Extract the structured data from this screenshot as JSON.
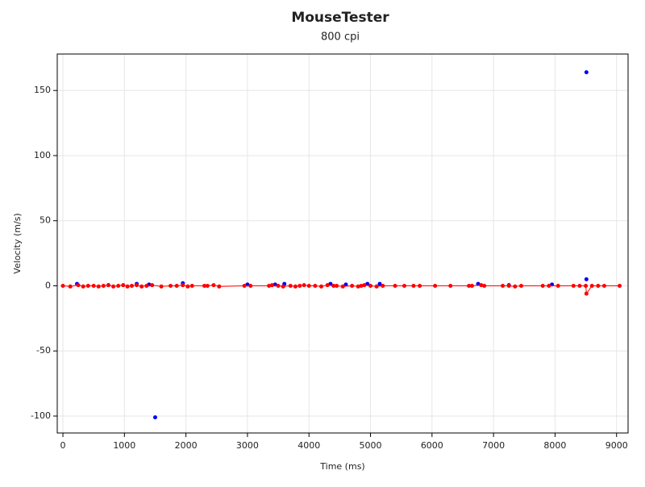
{
  "chart_data": {
    "type": "scatter",
    "title": "MouseTester",
    "subtitle": "800 cpi",
    "x_label": "Time (ms)",
    "y_label": "Velocity (m/s)",
    "xlim": [
      -92,
      9187
    ],
    "ylim": [
      -113,
      178
    ],
    "xticks": [
      0,
      1000,
      2000,
      3000,
      4000,
      5000,
      6000,
      7000,
      8000,
      9000
    ],
    "yticks": [
      -100,
      -50,
      0,
      50,
      100,
      150
    ],
    "grid": true,
    "series": [
      {
        "color": "#0000ff",
        "line": false,
        "x": [
          230,
          740,
          1200,
          1400,
          1500,
          1950,
          3000,
          3450,
          3600,
          4350,
          4600,
          4950,
          5150,
          6750,
          7250,
          7950,
          8510,
          8510
        ],
        "values": [
          1.5,
          0.5,
          1.5,
          1,
          -101,
          2,
          1,
          1,
          1.5,
          1.5,
          1,
          1.5,
          1.5,
          1.5,
          0.5,
          1,
          164,
          5
        ]
      },
      {
        "color": "#ff0000",
        "line": true,
        "x": [
          0,
          120,
          250,
          330,
          410,
          500,
          580,
          660,
          740,
          820,
          900,
          980,
          1050,
          1120,
          1200,
          1280,
          1360,
          1450,
          1600,
          1750,
          1850,
          1950,
          2030,
          2100,
          2300,
          2350,
          2450,
          2540,
          2950,
          3050,
          3350,
          3400,
          3500,
          3580,
          3700,
          3780,
          3850,
          3920,
          4000,
          4100,
          4200,
          4300,
          4400,
          4450,
          4550,
          4700,
          4800,
          4850,
          4900,
          5000,
          5100,
          5200,
          5400,
          5550,
          5700,
          5800,
          6050,
          6300,
          6600,
          6650,
          6800,
          6850,
          7150,
          7250,
          7350,
          7450,
          7800,
          7900,
          8050,
          8300,
          8400,
          8500,
          8510,
          8600,
          8700,
          8800,
          9050
        ],
        "values": [
          0,
          -0.5,
          0.5,
          -0.5,
          0,
          0,
          -0.5,
          0,
          0.5,
          -0.5,
          0,
          0.5,
          -0.5,
          0,
          0.5,
          -0.5,
          0,
          0.5,
          -0.5,
          0,
          0,
          0.5,
          -0.5,
          0,
          0,
          0,
          0.5,
          -0.5,
          0,
          0,
          0,
          0.5,
          0,
          -0.5,
          0,
          -0.5,
          0,
          0.5,
          0,
          0,
          -0.5,
          0.5,
          0,
          0,
          -0.5,
          0,
          -0.5,
          0,
          0.5,
          0,
          -0.5,
          0,
          0,
          0,
          0,
          0,
          0,
          0,
          0,
          0,
          0.5,
          0,
          0,
          0,
          -0.5,
          0,
          0,
          0,
          0,
          0,
          0,
          0,
          -6,
          0,
          0,
          0,
          0
        ]
      }
    ]
  }
}
